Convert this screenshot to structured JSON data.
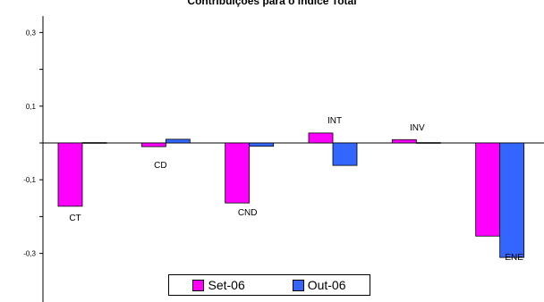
{
  "chart_data": {
    "type": "bar",
    "title": "Contribuições para o Índice Total",
    "categories": [
      "CT",
      "CD",
      "CND",
      "INT",
      "INV",
      "ENE"
    ],
    "series": [
      {
        "name": "Set-06",
        "color": "#FF00FF",
        "values": [
          -0.172,
          -0.01,
          -0.163,
          0.027,
          0.009,
          -0.253
        ]
      },
      {
        "name": "Out-06",
        "color": "#3366FF",
        "values": [
          0.001,
          0.01,
          -0.009,
          -0.061,
          0.001,
          -0.311
        ]
      }
    ],
    "yticks": [
      "0,3",
      "0,1",
      "-0,1",
      "-0,3"
    ],
    "ylim": [
      -0.35,
      0.35
    ],
    "grid": false,
    "legend_position": "bottom"
  }
}
